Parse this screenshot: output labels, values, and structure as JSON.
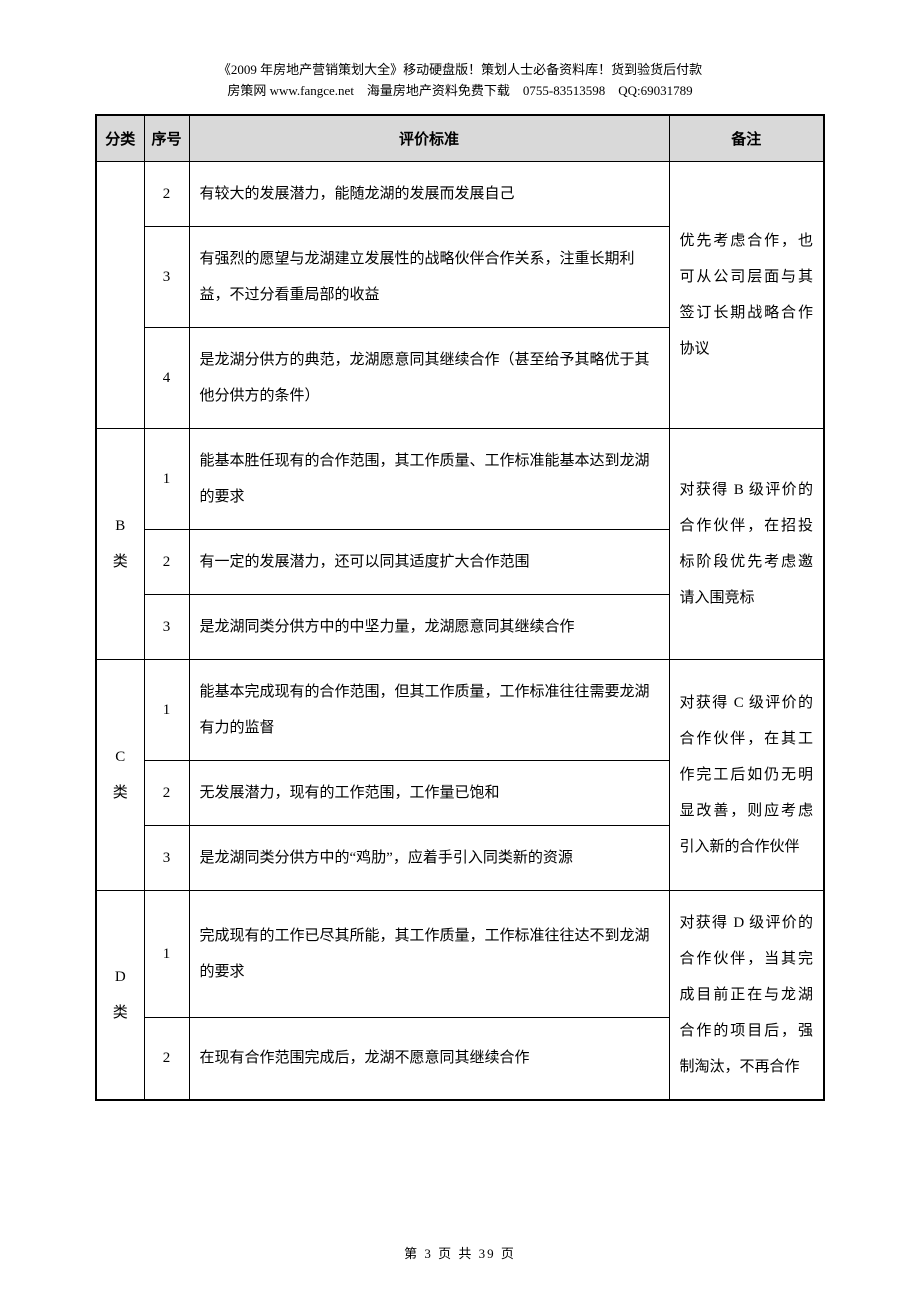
{
  "header": {
    "line1": "《2009 年房地产营销策划大全》移动硬盘版！策划人士必备资料库！货到验货后付款",
    "line2": "房策网 www.fangce.net　海量房地产资料免费下载　0755-83513598　QQ:69031789"
  },
  "table": {
    "headers": {
      "category": "分类",
      "num": "序号",
      "standard": "评价标准",
      "remark": "备注"
    },
    "groups": [
      {
        "category": "",
        "remark": "优先考虑合作，也可从公司层面与其签订长期战略合作协议",
        "rows": [
          {
            "num": "2",
            "standard": "有较大的发展潜力，能随龙湖的发展而发展自己"
          },
          {
            "num": "3",
            "standard": "有强烈的愿望与龙湖建立发展性的战略伙伴合作关系，注重长期利益，不过分看重局部的收益"
          },
          {
            "num": "4",
            "standard": "是龙湖分供方的典范，龙湖愿意同其继续合作（甚至给予其略优于其他分供方的条件）"
          }
        ]
      },
      {
        "category": "B 类",
        "remark": "对获得 B 级评价的合作伙伴，在招投标阶段优先考虑邀请入围竞标",
        "rows": [
          {
            "num": "1",
            "standard": "能基本胜任现有的合作范围，其工作质量、工作标准能基本达到龙湖的要求"
          },
          {
            "num": "2",
            "standard": "有一定的发展潜力，还可以同其适度扩大合作范围"
          },
          {
            "num": "3",
            "standard": "是龙湖同类分供方中的中坚力量，龙湖愿意同其继续合作"
          }
        ]
      },
      {
        "category": "C 类",
        "remark": "对获得 C 级评价的合作伙伴，在其工作完工后如仍无明显改善，则应考虑引入新的合作伙伴",
        "rows": [
          {
            "num": "1",
            "standard": "能基本完成现有的合作范围，但其工作质量，工作标准往往需要龙湖有力的监督"
          },
          {
            "num": "2",
            "standard": "无发展潜力，现有的工作范围，工作量已饱和"
          },
          {
            "num": "3",
            "standard": "是龙湖同类分供方中的“鸡肋”，应着手引入同类新的资源"
          }
        ]
      },
      {
        "category": "D 类",
        "remark": "对获得 D 级评价的合作伙伴，当其完成目前正在与龙湖合作的项目后，强制淘汰，不再合作",
        "rows": [
          {
            "num": "1",
            "standard": "完成现有的工作已尽其所能，其工作质量，工作标准往往达不到龙湖的要求"
          },
          {
            "num": "2",
            "standard": "在现有合作范围完成后，龙湖不愿意同其继续合作"
          }
        ]
      }
    ]
  },
  "footer": "第 3 页 共 39 页"
}
